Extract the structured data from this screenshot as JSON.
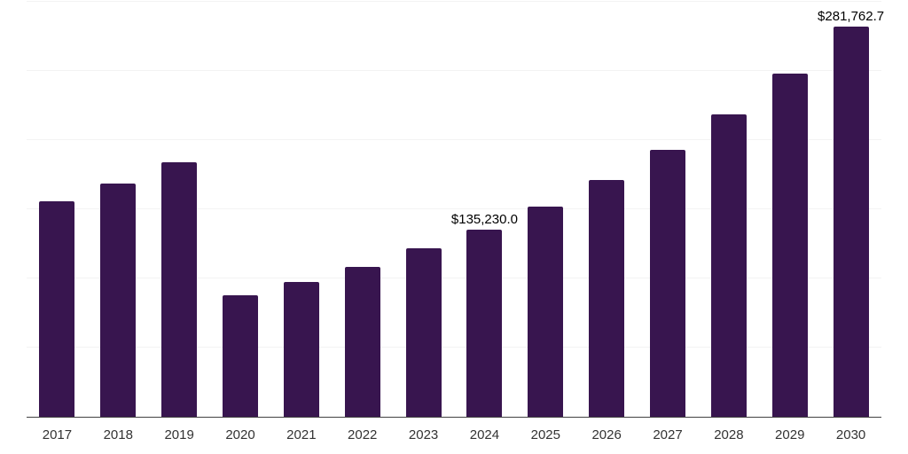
{
  "chart_data": {
    "type": "bar",
    "title": "",
    "xlabel": "",
    "ylabel": "",
    "categories": [
      "2017",
      "2018",
      "2019",
      "2020",
      "2021",
      "2022",
      "2023",
      "2024",
      "2025",
      "2026",
      "2027",
      "2028",
      "2029",
      "2030"
    ],
    "values": [
      155800,
      168600,
      184000,
      87800,
      97400,
      108300,
      121800,
      135230.0,
      151900,
      171200,
      192900,
      218600,
      248100,
      281762.7
    ],
    "labeled_points": [
      {
        "category": "2024",
        "label": "$135,230.0"
      },
      {
        "category": "2030",
        "label": "$281,762.7"
      }
    ],
    "ylim": [
      0,
      300000
    ],
    "gridline_interval": 50000,
    "grid": true,
    "legend": false,
    "y_axis_labels_shown": false,
    "colors": {
      "bar": "#38154f",
      "axis_line": "#414141",
      "gridline": "#f3f3f3",
      "tick_label": "#333333",
      "data_label": "#000000",
      "background": "#ffffff"
    }
  }
}
